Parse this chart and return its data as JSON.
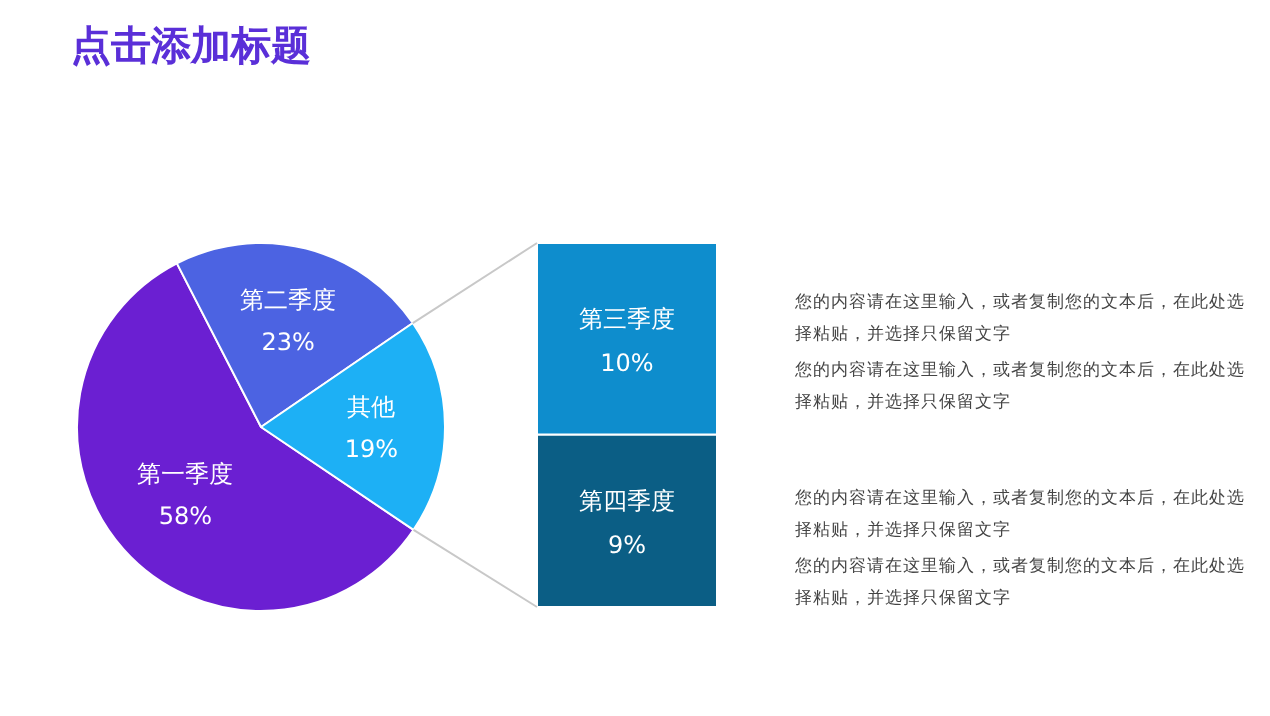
{
  "chart_data": [
    {
      "type": "pie",
      "title": "点击添加标题",
      "categories": [
        "第一季度",
        "第二季度",
        "其他"
      ],
      "values": [
        58,
        23,
        19
      ],
      "value_labels": [
        "58%",
        "23%",
        "19%"
      ],
      "colors": [
        "#6b1fd2",
        "#4c63e2",
        "#1db0f5"
      ]
    },
    {
      "type": "bar",
      "stacked": true,
      "categories": [
        null
      ],
      "series": [
        {
          "name": "第四季度",
          "color": "#0b5e85",
          "values": [
            9
          ],
          "value_labels": [
            "9%"
          ]
        },
        {
          "name": "第三季度",
          "color": "#0e8dcd",
          "values": [
            10
          ],
          "value_labels": [
            "10%"
          ]
        }
      ]
    },
    {
      "type": "other",
      "annotations": [
        "您的内容请在这里输入，或者复制您的文本后，在此处选择粘贴，并选择只保留文字",
        "您的内容请在这里输入，或者复制您的文本后，在此处选择粘贴，并选择只保留文字",
        "您的内容请在这里输入，或者复制您的文本后，在此处选择粘贴，并选择只保留文字",
        "您的内容请在这里输入，或者复制您的文本后，在此处选择粘贴，并选择只保留文字"
      ]
    }
  ]
}
